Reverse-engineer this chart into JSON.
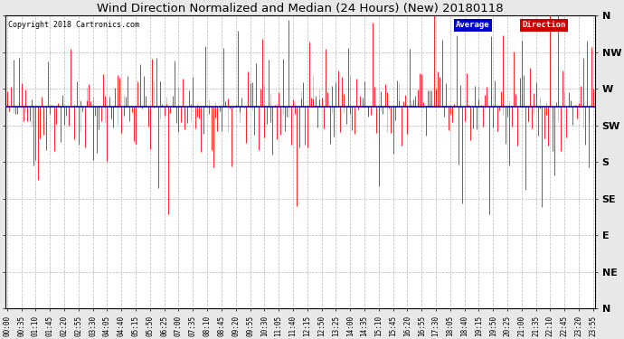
{
  "title": "Wind Direction Normalized and Median (24 Hours) (New) 20180118",
  "copyright": "Copyright 2018 Cartronics.com",
  "yticks_labels": [
    "N",
    "NW",
    "W",
    "SW",
    "S",
    "SE",
    "E",
    "NE",
    "N"
  ],
  "yticks_values": [
    360,
    315,
    270,
    225,
    180,
    135,
    90,
    45,
    0
  ],
  "ylim": [
    0,
    360
  ],
  "num_points": 288,
  "median_value": 248,
  "seed": 42,
  "bg_color": "#e8e8e8",
  "plot_bg": "#ffffff",
  "red_color": "#ff0000",
  "blue_color": "#0000cc",
  "dark_color": "#333333",
  "grid_color": "#999999",
  "legend_avg_bg": "#0000cc",
  "legend_dir_bg": "#cc0000",
  "xtick_labels": [
    "00:00",
    "00:35",
    "01:10",
    "01:45",
    "02:20",
    "02:55",
    "03:30",
    "04:05",
    "04:40",
    "05:15",
    "05:50",
    "06:25",
    "07:00",
    "07:35",
    "08:10",
    "08:45",
    "09:20",
    "09:55",
    "10:30",
    "11:05",
    "11:40",
    "12:15",
    "12:50",
    "13:25",
    "14:00",
    "14:35",
    "15:10",
    "15:45",
    "16:20",
    "16:55",
    "17:30",
    "18:05",
    "18:40",
    "19:15",
    "19:50",
    "20:25",
    "21:00",
    "21:35",
    "22:10",
    "22:45",
    "23:20",
    "23:55"
  ],
  "noise_std": 38,
  "spike_up_count": 15,
  "spike_up_amount": 80,
  "spike_down_count": 20,
  "spike_down_amount": 70
}
